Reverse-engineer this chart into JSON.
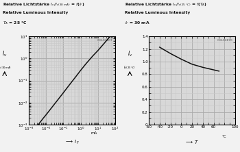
{
  "chart1": {
    "title1": "Relative Lichtstärke $I_v/I_{v(30\\,mA)}$ = $f$($I_F$)",
    "title2": "Relative Luminous Intensity",
    "subtitle": "$T_A$ = 25 °C",
    "code": "OHL01407",
    "ylabel_top": "$I_v$",
    "ylabel_bot": "$I_{v(30\\,mA)}$",
    "xlabel": "$I_F$",
    "xlabel_unit": "mA",
    "xmin": 0.001,
    "xmax": 100.0,
    "ymin": 0.001,
    "ymax": 10.0,
    "x_data": [
      0.001,
      0.003,
      0.007,
      0.01,
      0.02,
      0.05,
      0.1,
      0.2,
      0.5,
      1.0,
      2.0,
      5.0,
      10.0,
      20.0,
      50.0,
      100.0
    ],
    "y_data": [
      0.00028,
      0.00085,
      0.002,
      0.0028,
      0.0056,
      0.014,
      0.028,
      0.057,
      0.143,
      0.29,
      0.57,
      1.3,
      2.3,
      4.3,
      10.0,
      20.0
    ]
  },
  "chart2": {
    "title1": "Relative Lichtstärke $I_v/I_{v(25\\,°C)}$ = $f$($T_A$)",
    "title2": "Relative Luminous Intensity",
    "subtitle": "$I_F$ = 30 mA",
    "code": "OHL02870",
    "ylabel_top": "$I_v$",
    "ylabel_bot": "$I_{v(25\\,°C)}$",
    "xlabel": "$T$",
    "xmin": -60,
    "xmax": 100,
    "ymin": 0,
    "ymax": 1.4,
    "x_data": [
      -40,
      -20,
      0,
      20,
      40,
      60,
      70
    ],
    "y_data": [
      1.23,
      1.13,
      1.04,
      0.96,
      0.91,
      0.87,
      0.85
    ]
  },
  "bg_color": "#d8d8d8",
  "line_color": "#111111",
  "grid_major_color": "#aaaaaa",
  "grid_minor_color": "#c8c8c8",
  "fig_bg": "#f2f2f2",
  "text_color": "#111111"
}
